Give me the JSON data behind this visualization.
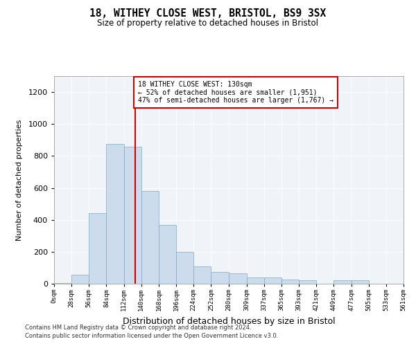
{
  "title1": "18, WITHEY CLOSE WEST, BRISTOL, BS9 3SX",
  "title2": "Size of property relative to detached houses in Bristol",
  "xlabel": "Distribution of detached houses by size in Bristol",
  "ylabel": "Number of detached properties",
  "property_size": 130,
  "annotation_line1": "18 WITHEY CLOSE WEST: 130sqm",
  "annotation_line2": "← 52% of detached houses are smaller (1,951)",
  "annotation_line3": "47% of semi-detached houses are larger (1,767) →",
  "footer1": "Contains HM Land Registry data © Crown copyright and database right 2024.",
  "footer2": "Contains public sector information licensed under the Open Government Licence v3.0.",
  "bar_color": "#ccdcec",
  "bar_edge_color": "#7aaac8",
  "vline_color": "#cc0000",
  "annotation_box_color": "#cc0000",
  "ylim": [
    0,
    1300
  ],
  "yticks": [
    0,
    200,
    400,
    600,
    800,
    1000,
    1200
  ],
  "bin_edges": [
    0,
    28,
    56,
    84,
    112,
    140,
    168,
    196,
    224,
    252,
    280,
    309,
    337,
    365,
    393,
    421,
    449,
    477,
    505,
    533,
    561
  ],
  "bin_labels": [
    "0sqm",
    "28sqm",
    "56sqm",
    "84sqm",
    "112sqm",
    "140sqm",
    "168sqm",
    "196sqm",
    "224sqm",
    "252sqm",
    "280sqm",
    "309sqm",
    "337sqm",
    "365sqm",
    "393sqm",
    "421sqm",
    "449sqm",
    "477sqm",
    "505sqm",
    "533sqm",
    "561sqm"
  ],
  "counts": [
    5,
    55,
    440,
    875,
    860,
    580,
    370,
    200,
    110,
    75,
    65,
    40,
    40,
    25,
    20,
    0,
    20,
    20,
    0,
    0
  ],
  "background_color": "#f0f4f8"
}
